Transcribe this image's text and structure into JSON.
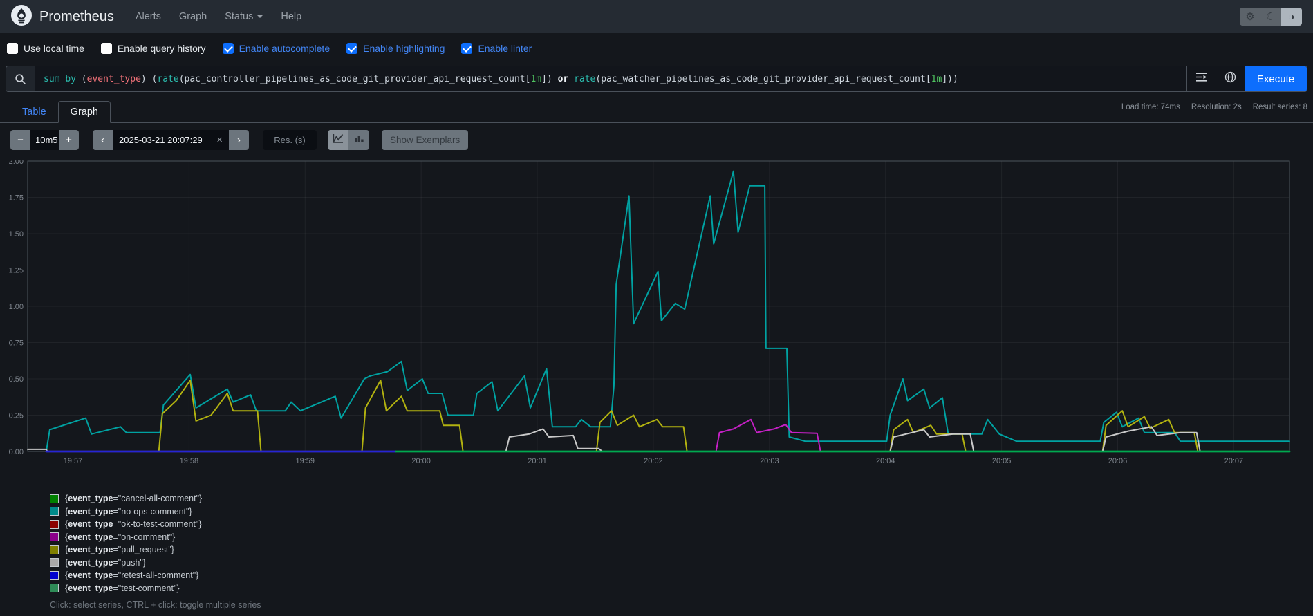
{
  "navbar": {
    "brand": "Prometheus",
    "links": [
      {
        "label": "Alerts",
        "has_caret": false
      },
      {
        "label": "Graph",
        "has_caret": false
      },
      {
        "label": "Status",
        "has_caret": true
      },
      {
        "label": "Help",
        "has_caret": false
      }
    ],
    "theme_buttons": [
      {
        "name": "settings",
        "icon": "gear",
        "active": false
      },
      {
        "name": "dark-theme",
        "icon": "moon",
        "active": false
      },
      {
        "name": "auto-theme",
        "icon": "contrast",
        "active": true
      }
    ]
  },
  "icons": {
    "gear": "⚙",
    "moon": "☾",
    "contrast": "◑",
    "minus": "−",
    "plus": "+",
    "prev": "‹",
    "next": "›",
    "clear": "×"
  },
  "options_bar": {
    "items": [
      {
        "label": "Use local time",
        "checked": false
      },
      {
        "label": "Enable query history",
        "checked": false
      },
      {
        "label": "Enable autocomplete",
        "checked": true
      },
      {
        "label": "Enable highlighting",
        "checked": true
      },
      {
        "label": "Enable linter",
        "checked": true
      }
    ]
  },
  "query_bar": {
    "execute_label": "Execute",
    "expression_segments": [
      {
        "t": "sum",
        "c": "kw"
      },
      {
        "t": " ",
        "c": "p"
      },
      {
        "t": "by",
        "c": "kw"
      },
      {
        "t": " ",
        "c": "p"
      },
      {
        "t": "(",
        "c": "p"
      },
      {
        "t": "event_type",
        "c": "lbl"
      },
      {
        "t": ")",
        "c": "p"
      },
      {
        "t": " ",
        "c": "p"
      },
      {
        "t": "(",
        "c": "p"
      },
      {
        "t": "rate",
        "c": "fn"
      },
      {
        "t": "(",
        "c": "p"
      },
      {
        "t": "pac_controller_pipelines_as_code_git_provider_api_request_count",
        "c": "m"
      },
      {
        "t": "[",
        "c": "p"
      },
      {
        "t": "1m",
        "c": "dur"
      },
      {
        "t": "]",
        "c": "p"
      },
      {
        "t": ")",
        "c": "p"
      },
      {
        "t": " ",
        "c": "p"
      },
      {
        "t": "or",
        "c": "op"
      },
      {
        "t": " ",
        "c": "p"
      },
      {
        "t": "rate",
        "c": "fn"
      },
      {
        "t": "(",
        "c": "p"
      },
      {
        "t": "pac_watcher_pipelines_as_code_git_provider_api_request_count",
        "c": "m"
      },
      {
        "t": "[",
        "c": "p"
      },
      {
        "t": "1m",
        "c": "dur"
      },
      {
        "t": "]",
        "c": "p"
      },
      {
        "t": ")",
        "c": "p"
      },
      {
        "t": ")",
        "c": "p"
      }
    ]
  },
  "tabs": [
    {
      "label": "Table",
      "active": false
    },
    {
      "label": "Graph",
      "active": true
    }
  ],
  "stats": [
    "Load time: 74ms",
    "Resolution: 2s",
    "Result series: 8"
  ],
  "controls": {
    "range_value": "10m5",
    "time_value": "2025-03-21 20:07:29",
    "resolution_placeholder": "Res. (s)",
    "show_exemplars_label": "Show Exemplars"
  },
  "legend": {
    "label_key": "event_type",
    "note": "Click: select series, CTRL + click: toggle multiple series"
  },
  "chart_data": {
    "type": "line",
    "title": "",
    "xlabel": "",
    "ylabel": "",
    "x_axis": {
      "tick_labels": [
        "19:57",
        "19:58",
        "19:59",
        "20:00",
        "20:01",
        "20:02",
        "20:03",
        "20:04",
        "20:05",
        "20:06",
        "20:07"
      ],
      "first_tick_offset_min": 0.39,
      "minutes_per_tick": 1,
      "span_min": 10.87
    },
    "y_axis": {
      "tick_labels": [
        "0.00",
        "0.25",
        "0.50",
        "0.75",
        "1.00",
        "1.25",
        "1.50",
        "1.75",
        "2.00"
      ],
      "min": 0,
      "max": 2,
      "tick_step": 0.25
    },
    "grid": true,
    "legend_position": "bottom-left",
    "draw_order": [
      "cancel-all-comment",
      "no-ops-comment",
      "ok-to-test-comment",
      "on-comment",
      "pull_request",
      "push",
      "retest-all-comment",
      "test-comment"
    ],
    "series": [
      {
        "name": "cancel-all-comment",
        "swatch_color": "#008000",
        "line_color": "#00a04d",
        "width": 2.6,
        "points": [
          [
            0.16,
            0
          ],
          [
            10.87,
            0
          ]
        ]
      },
      {
        "name": "no-ops-comment",
        "swatch_color": "#008b8b",
        "line_color": "#00a2a2",
        "width": 2,
        "points": [
          [
            0.16,
            0
          ],
          [
            0.19,
            0.15
          ],
          [
            0.5,
            0.23
          ],
          [
            0.55,
            0.12
          ],
          [
            0.8,
            0.17
          ],
          [
            0.85,
            0.13
          ],
          [
            1.14,
            0.13
          ],
          [
            1.17,
            0.32
          ],
          [
            1.4,
            0.53
          ],
          [
            1.45,
            0.3
          ],
          [
            1.72,
            0.43
          ],
          [
            1.77,
            0.34
          ],
          [
            1.92,
            0.39
          ],
          [
            1.97,
            0.28
          ],
          [
            2.22,
            0.28
          ],
          [
            2.27,
            0.34
          ],
          [
            2.35,
            0.28
          ],
          [
            2.65,
            0.38
          ],
          [
            2.7,
            0.23
          ],
          [
            2.9,
            0.5
          ],
          [
            2.95,
            0.52
          ],
          [
            3.1,
            0.55
          ],
          [
            3.22,
            0.62
          ],
          [
            3.27,
            0.42
          ],
          [
            3.4,
            0.5
          ],
          [
            3.45,
            0.4
          ],
          [
            3.57,
            0.4
          ],
          [
            3.62,
            0.25
          ],
          [
            3.84,
            0.25
          ],
          [
            3.87,
            0.4
          ],
          [
            4.0,
            0.48
          ],
          [
            4.05,
            0.28
          ],
          [
            4.28,
            0.52
          ],
          [
            4.33,
            0.3
          ],
          [
            4.47,
            0.57
          ],
          [
            4.52,
            0.17
          ],
          [
            4.72,
            0.17
          ],
          [
            4.77,
            0.22
          ],
          [
            4.85,
            0.17
          ],
          [
            5.02,
            0.17
          ],
          [
            5.05,
            0.45
          ],
          [
            5.07,
            1.15
          ],
          [
            5.18,
            1.76
          ],
          [
            5.22,
            0.88
          ],
          [
            5.43,
            1.24
          ],
          [
            5.46,
            0.9
          ],
          [
            5.58,
            1.02
          ],
          [
            5.66,
            0.98
          ],
          [
            5.88,
            1.76
          ],
          [
            5.91,
            1.43
          ],
          [
            6.08,
            1.93
          ],
          [
            6.12,
            1.51
          ],
          [
            6.22,
            1.83
          ],
          [
            6.35,
            1.83
          ],
          [
            6.36,
            0.71
          ],
          [
            6.54,
            0.71
          ],
          [
            6.56,
            0.1
          ],
          [
            6.7,
            0.07
          ],
          [
            7.4,
            0.07
          ],
          [
            7.43,
            0.25
          ],
          [
            7.54,
            0.5
          ],
          [
            7.58,
            0.35
          ],
          [
            7.72,
            0.43
          ],
          [
            7.77,
            0.3
          ],
          [
            7.88,
            0.37
          ],
          [
            7.93,
            0.12
          ],
          [
            8.22,
            0.12
          ],
          [
            8.27,
            0.22
          ],
          [
            8.37,
            0.12
          ],
          [
            8.52,
            0.07
          ],
          [
            9.24,
            0.07
          ],
          [
            9.27,
            0.2
          ],
          [
            9.38,
            0.27
          ],
          [
            9.43,
            0.17
          ],
          [
            9.57,
            0.23
          ],
          [
            9.62,
            0.13
          ],
          [
            9.88,
            0.13
          ],
          [
            9.93,
            0.07
          ],
          [
            10.87,
            0.07
          ]
        ]
      },
      {
        "name": "ok-to-test-comment",
        "swatch_color": "#8b0000",
        "line_color": "#8b0000",
        "width": 2.6,
        "points": [
          [
            0.16,
            0
          ],
          [
            3.17,
            0
          ]
        ]
      },
      {
        "name": "on-comment",
        "swatch_color": "#8b008b",
        "line_color": "#c520c5",
        "width": 2,
        "points": [
          [
            5.93,
            0
          ],
          [
            5.96,
            0.13
          ],
          [
            6.08,
            0.155
          ],
          [
            6.23,
            0.22
          ],
          [
            6.28,
            0.13
          ],
          [
            6.43,
            0.155
          ],
          [
            6.53,
            0.185
          ],
          [
            6.58,
            0.13
          ],
          [
            6.8,
            0.125
          ],
          [
            6.83,
            0
          ]
        ]
      },
      {
        "name": "pull_request",
        "swatch_color": "#808000",
        "line_color": "#b2b210",
        "width": 2,
        "points": [
          [
            1.13,
            0
          ],
          [
            1.16,
            0.26
          ],
          [
            1.28,
            0.35
          ],
          [
            1.4,
            0.49
          ],
          [
            1.45,
            0.21
          ],
          [
            1.58,
            0.25
          ],
          [
            1.72,
            0.4
          ],
          [
            1.77,
            0.28
          ],
          [
            1.98,
            0.28
          ],
          [
            2.01,
            0
          ],
          [
            2.88,
            0
          ],
          [
            2.91,
            0.3
          ],
          [
            3.04,
            0.49
          ],
          [
            3.09,
            0.28
          ],
          [
            3.22,
            0.38
          ],
          [
            3.27,
            0.28
          ],
          [
            3.55,
            0.28
          ],
          [
            3.58,
            0.18
          ],
          [
            3.72,
            0.18
          ],
          [
            3.75,
            0
          ],
          [
            4.9,
            0
          ],
          [
            4.93,
            0.2
          ],
          [
            5.03,
            0.28
          ],
          [
            5.08,
            0.18
          ],
          [
            5.22,
            0.25
          ],
          [
            5.27,
            0.17
          ],
          [
            5.42,
            0.22
          ],
          [
            5.47,
            0.17
          ],
          [
            5.65,
            0.17
          ],
          [
            5.68,
            0
          ],
          [
            7.43,
            0
          ],
          [
            7.46,
            0.15
          ],
          [
            7.58,
            0.22
          ],
          [
            7.63,
            0.13
          ],
          [
            7.78,
            0.18
          ],
          [
            7.83,
            0.12
          ],
          [
            8.05,
            0.12
          ],
          [
            8.08,
            0
          ],
          [
            9.26,
            0
          ],
          [
            9.29,
            0.18
          ],
          [
            9.43,
            0.28
          ],
          [
            9.48,
            0.17
          ],
          [
            9.62,
            0.24
          ],
          [
            9.67,
            0.16
          ],
          [
            9.83,
            0.22
          ],
          [
            9.88,
            0.13
          ],
          [
            10.05,
            0.13
          ],
          [
            10.08,
            0
          ]
        ]
      },
      {
        "name": "push",
        "swatch_color": "#a9a9a9",
        "line_color": "#c9c9c9",
        "width": 2,
        "points": [
          [
            0.0,
            0.015
          ],
          [
            0.16,
            0.015
          ],
          [
            0.17,
            0
          ],
          [
            4.12,
            0
          ],
          [
            4.15,
            0.1
          ],
          [
            4.32,
            0.12
          ],
          [
            4.44,
            0.155
          ],
          [
            4.49,
            0.1
          ],
          [
            4.7,
            0.11
          ],
          [
            4.74,
            0.02
          ],
          [
            4.92,
            0.02
          ],
          [
            4.95,
            0
          ],
          [
            7.43,
            0
          ],
          [
            7.46,
            0.1
          ],
          [
            7.62,
            0.13
          ],
          [
            7.72,
            0.15
          ],
          [
            7.77,
            0.1
          ],
          [
            7.97,
            0.12
          ],
          [
            8.12,
            0.12
          ],
          [
            8.15,
            0
          ],
          [
            9.26,
            0
          ],
          [
            9.29,
            0.1
          ],
          [
            9.48,
            0.14
          ],
          [
            9.68,
            0.17
          ],
          [
            9.73,
            0.11
          ],
          [
            9.93,
            0.13
          ],
          [
            10.07,
            0.13
          ],
          [
            10.1,
            0
          ]
        ]
      },
      {
        "name": "retest-all-comment",
        "swatch_color": "#0000cd",
        "line_color": "#2525d4",
        "width": 2.8,
        "points": [
          [
            0.16,
            0
          ],
          [
            3.17,
            0
          ]
        ]
      },
      {
        "name": "test-comment",
        "swatch_color": "#2e8b57",
        "line_color": "#00a94f",
        "width": 2.6,
        "points": [
          [
            3.17,
            0
          ],
          [
            10.87,
            0
          ]
        ]
      }
    ]
  }
}
